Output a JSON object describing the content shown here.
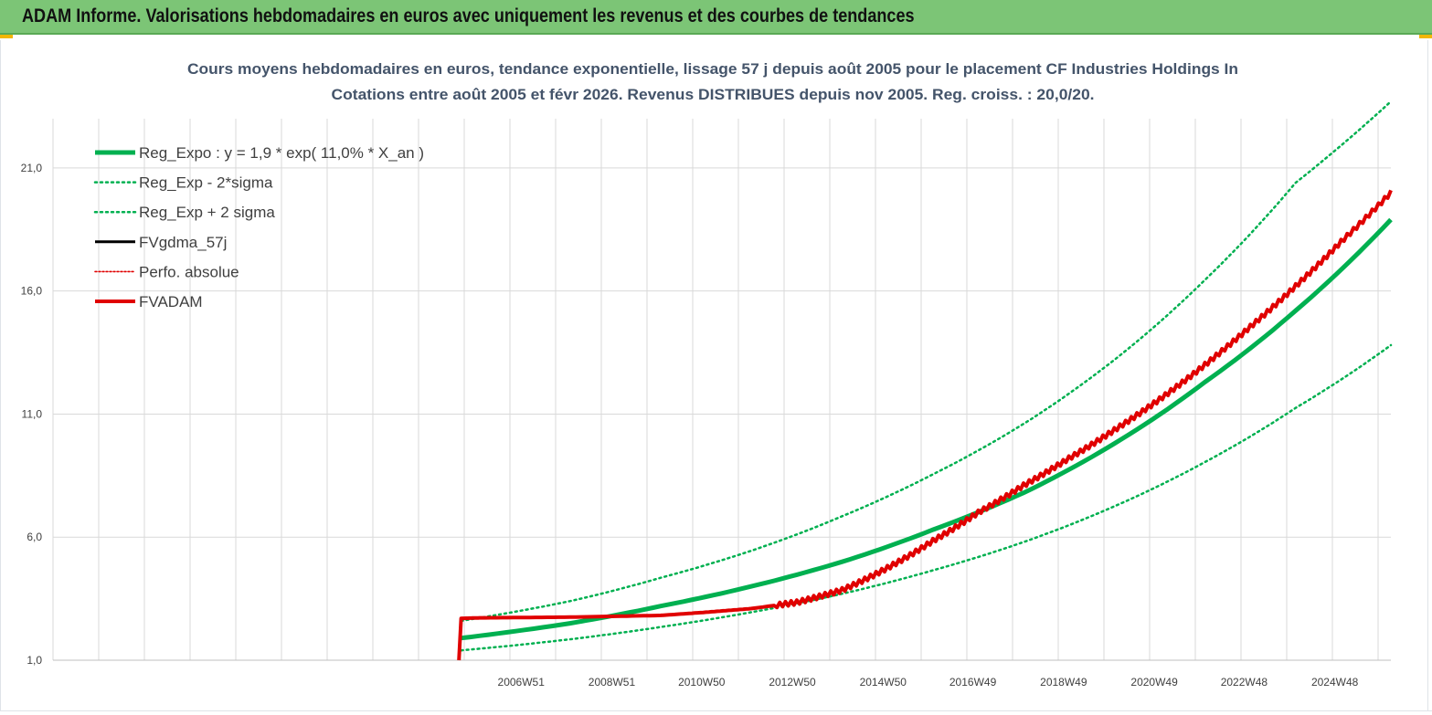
{
  "header": {
    "title": "ADAM Informe. Valorisations hebdomadaires en euros avec uniquement les revenus et des courbes de tendances"
  },
  "colors": {
    "header_bg": "#7cc576",
    "accent": "#f2b705",
    "trend_green": "#00b050",
    "fvadam_red": "#e00000",
    "title_text": "#44546a",
    "grid": "#d9d9d9"
  },
  "chart_data": {
    "type": "line",
    "title": "Cours moyens hebdomadaires en euros, tendance exponentielle, lissage 57 j depuis août 2005 pour le placement CF Industries Holdings In",
    "subtitle": "Cotations entre août 2005 et févr 2026. Revenus DISTRIBUES depuis nov 2005. Reg. croiss. : 20,0/20.",
    "xlabel": "",
    "ylabel": "",
    "ylim": [
      1.0,
      23.0
    ],
    "y_ticks": [
      "1,0",
      "6,0",
      "11,0",
      "16,0",
      "21,0"
    ],
    "x_ticks": [
      "2006W51",
      "2008W51",
      "2010W50",
      "2012W50",
      "2014W50",
      "2016W49",
      "2018W49",
      "2020W49",
      "2022W48",
      "2024W48"
    ],
    "xlim_years": [
      1996.6,
      2026.1
    ],
    "grid": true,
    "legend_position": "top-left",
    "legend": [
      "Reg_Expo : y = 1,9 * exp( 11,0% *  X_an )",
      "Reg_Exp - 2*sigma",
      "Reg_Exp + 2 sigma",
      "FVgdma_57j",
      "Perfo. absolue",
      "FVADAM"
    ],
    "series": [
      {
        "name": "Reg_Expo : y = 1,9 * exp( 11,0% *  X_an )",
        "x": [
          2005.6,
          2008.0,
          2010.0,
          2012.0,
          2014.0,
          2016.0,
          2018.0,
          2020.0,
          2022.0,
          2024.0,
          2026.1
        ],
        "y": [
          1.9,
          2.5,
          3.2,
          4.0,
          5.0,
          6.3,
          7.8,
          9.8,
          12.3,
          15.2,
          18.9
        ]
      },
      {
        "name": "Reg_Exp - 2*sigma",
        "x": [
          2005.6,
          2008.0,
          2010.0,
          2012.0,
          2014.0,
          2016.0,
          2018.0,
          2020.0,
          2022.0,
          2024.0,
          2026.1
        ],
        "y": [
          1.4,
          1.85,
          2.35,
          2.95,
          3.7,
          4.65,
          5.8,
          7.25,
          9.05,
          11.25,
          13.8
        ]
      },
      {
        "name": "Reg_Exp + 2 sigma",
        "x": [
          2005.6,
          2008.0,
          2010.0,
          2012.0,
          2014.0,
          2016.0,
          2018.0,
          2020.0,
          2022.0,
          2024.0,
          2026.1
        ],
        "y": [
          2.6,
          3.4,
          4.35,
          5.45,
          6.85,
          8.55,
          10.6,
          13.2,
          16.45,
          20.4,
          23.7
        ]
      },
      {
        "name": "FVADAM",
        "x": [
          2005.55,
          2005.6,
          2006.0,
          2008.0,
          2010.0,
          2011.0,
          2012.0,
          2013.0,
          2014.0,
          2015.0,
          2016.0,
          2017.0,
          2018.0,
          2019.0,
          2020.0,
          2021.0,
          2022.0,
          2023.0,
          2024.0,
          2025.0,
          2026.1
        ],
        "y": [
          1.0,
          2.7,
          2.72,
          2.75,
          2.82,
          2.95,
          3.1,
          3.35,
          3.85,
          4.75,
          5.85,
          7.0,
          8.1,
          9.2,
          10.35,
          11.6,
          13.0,
          14.55,
          16.2,
          18.0,
          20.0
        ]
      }
    ]
  }
}
